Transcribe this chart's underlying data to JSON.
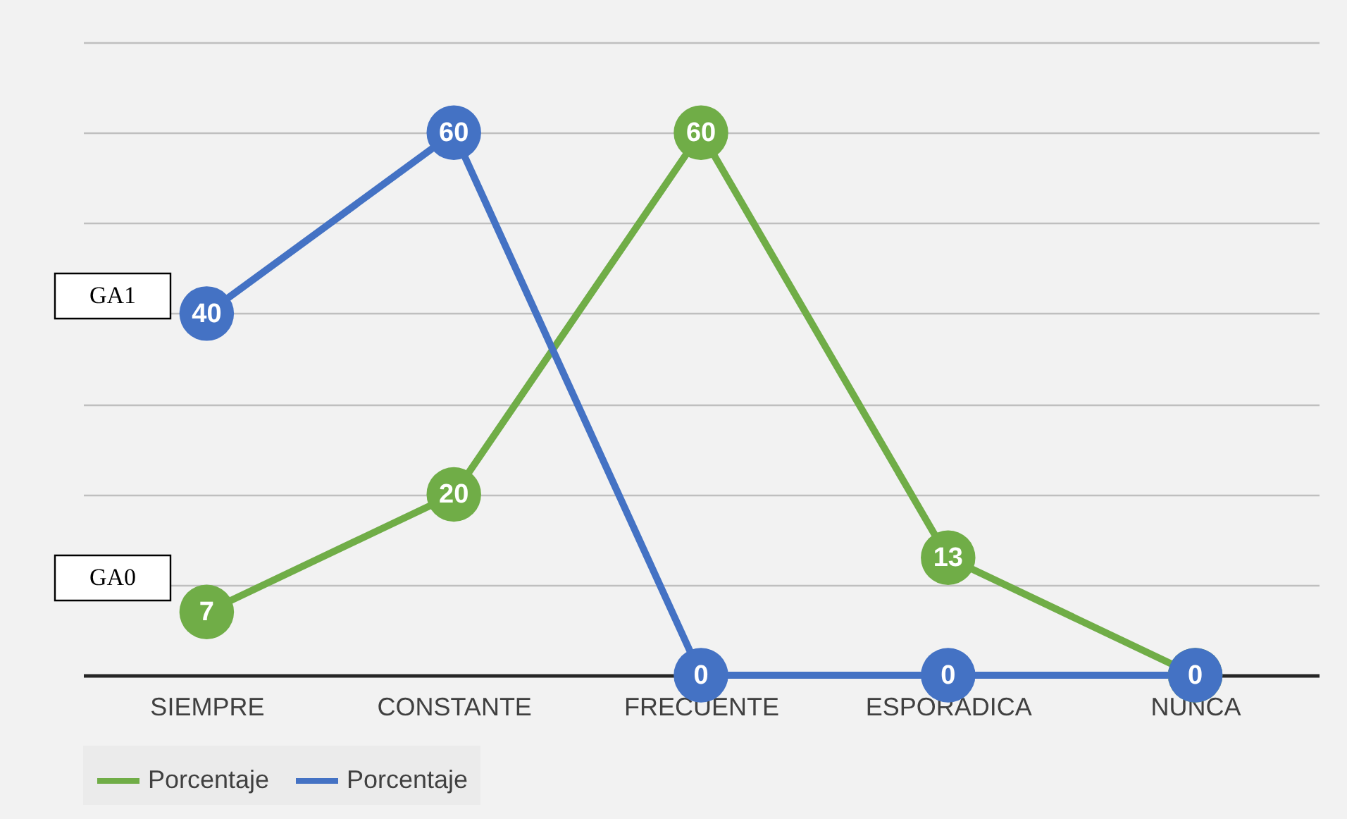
{
  "chart_data": {
    "type": "line",
    "categories": [
      "SIEMPRE",
      "CONSTANTE",
      "FRECUENTE",
      "ESPORADICA",
      "NUNCA"
    ],
    "series": [
      {
        "name": "Porcentaje",
        "color": "#70ad47",
        "values": [
          7,
          20,
          60,
          13,
          0
        ],
        "value_labels": [
          "7",
          "20",
          "60",
          "13",
          null
        ]
      },
      {
        "name": "Porcentaje",
        "color": "#4472c4",
        "values": [
          40,
          60,
          0,
          0,
          0
        ],
        "value_labels": [
          "40",
          "60",
          "0",
          "0",
          "0"
        ]
      }
    ],
    "ylim": [
      0,
      70
    ],
    "yticks": [
      0,
      10,
      20,
      30,
      40,
      50,
      60,
      70
    ],
    "tick_labels": "x",
    "grid": "y",
    "legend": "bottom",
    "marker": "circle",
    "annotations": [
      "GA1",
      "GA0"
    ]
  }
}
